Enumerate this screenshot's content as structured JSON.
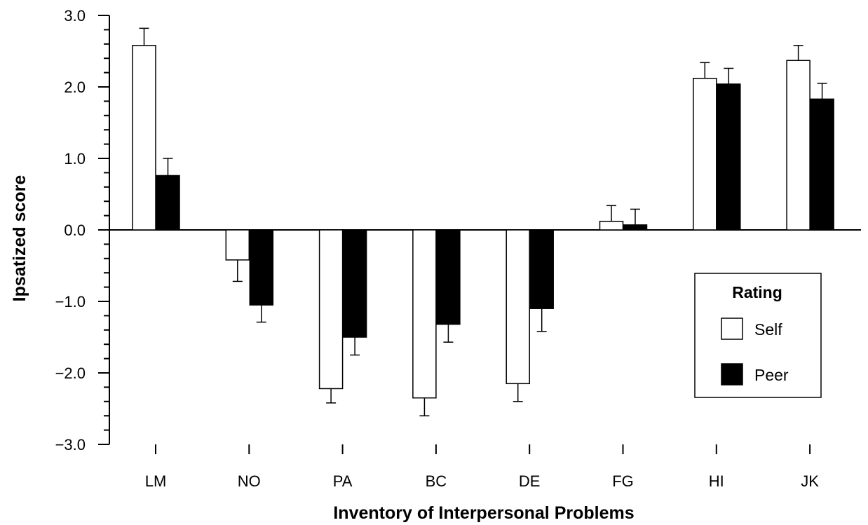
{
  "chart_data": {
    "type": "bar",
    "xlabel": "Inventory of Interpersonal Problems",
    "ylabel": "Ipsatized score",
    "ylim": [
      -3.0,
      3.0
    ],
    "yticks": [
      "3.0",
      "2.0",
      "1.0",
      "0.0",
      "−1.0",
      "−2.0",
      "−3.0"
    ],
    "ytick_values": [
      3,
      2,
      1,
      0,
      -1,
      -2,
      -3
    ],
    "categories": [
      "LM",
      "NO",
      "PA",
      "BC",
      "DE",
      "FG",
      "HI",
      "JK"
    ],
    "series": [
      {
        "name": "Self",
        "color": "#ffffff",
        "values": [
          2.58,
          -0.42,
          -2.22,
          -2.35,
          -2.15,
          0.12,
          2.12,
          2.37
        ],
        "errors": [
          0.24,
          0.3,
          0.2,
          0.25,
          0.25,
          0.22,
          0.22,
          0.21
        ]
      },
      {
        "name": "Peer",
        "color": "#000000",
        "values": [
          0.76,
          -1.05,
          -1.5,
          -1.32,
          -1.1,
          0.07,
          2.04,
          1.83
        ],
        "errors": [
          0.24,
          0.24,
          0.25,
          0.25,
          0.32,
          0.22,
          0.22,
          0.22
        ]
      }
    ],
    "grid": false,
    "legend": {
      "title": "Rating",
      "position": "right"
    }
  }
}
